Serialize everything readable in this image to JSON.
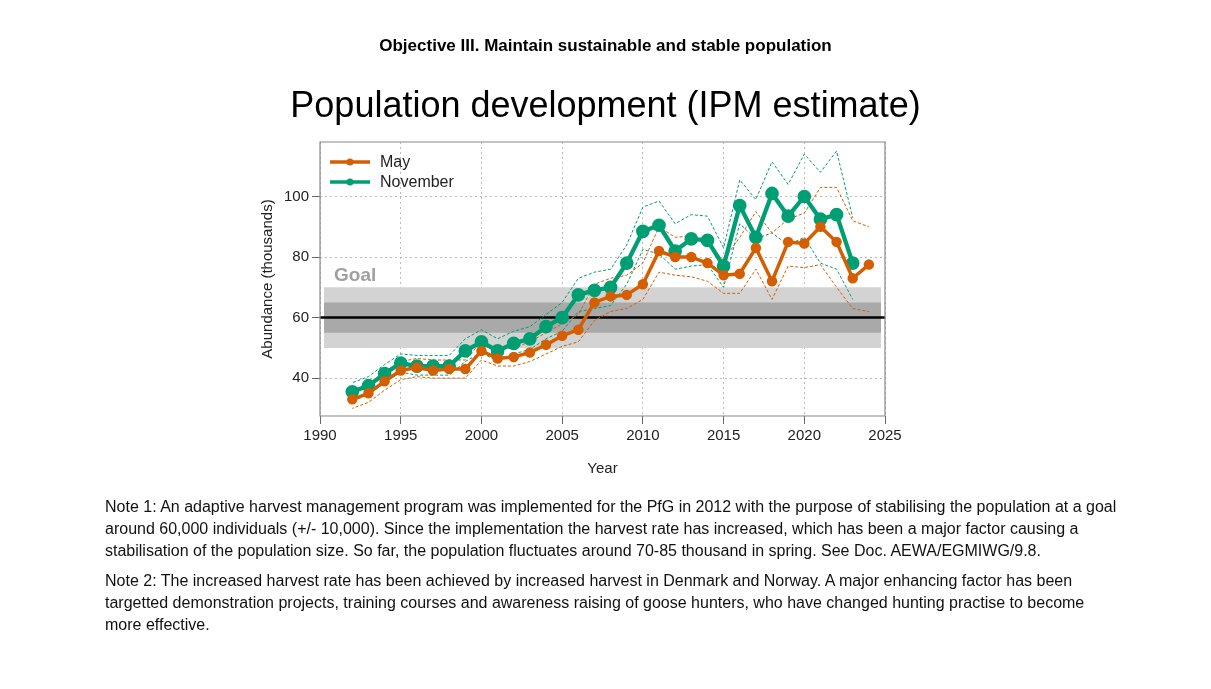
{
  "chart_data": {
    "type": "line",
    "subtitle": "Objective III. Maintain sustainable and stable population",
    "title": "Population development (IPM estimate)",
    "xlabel": "Year",
    "ylabel": "Abundance (thousands)",
    "x": [
      1992,
      1993,
      1994,
      1995,
      1996,
      1997,
      1998,
      1999,
      2000,
      2001,
      2002,
      2003,
      2004,
      2005,
      2006,
      2007,
      2008,
      2009,
      2010,
      2011,
      2012,
      2013,
      2014,
      2015,
      2016,
      2017,
      2018,
      2019,
      2020,
      2021,
      2022,
      2023,
      2024
    ],
    "series": [
      {
        "name": "May",
        "color": "#d55e00",
        "values": [
          33,
          35,
          39,
          42.5,
          43.5,
          42.5,
          43,
          43,
          49,
          46.5,
          47,
          48.5,
          51,
          54,
          56,
          65,
          67,
          67.5,
          71,
          82,
          80,
          80,
          78,
          74,
          74.5,
          83,
          72,
          85,
          84.5,
          90,
          85,
          73,
          77.5
        ]
      },
      {
        "name": "November",
        "color": "#009e73",
        "values": [
          35.5,
          37.5,
          41.5,
          45,
          44,
          44,
          44,
          49,
          52,
          49,
          51.5,
          53,
          57,
          60,
          67.5,
          69,
          70,
          78,
          88.5,
          90.5,
          82,
          86,
          85.5,
          77,
          97,
          86.5,
          101,
          93.5,
          100,
          92.5,
          94,
          78,
          null
        ]
      },
      {
        "color": "#d55e00",
        "line_style": "dashed",
        "marker": "none",
        "values": [
          30,
          32,
          36,
          39.5,
          40.5,
          40,
          40,
          40,
          46,
          44,
          44,
          45.5,
          48,
          50.5,
          52,
          59,
          62,
          63,
          66,
          75,
          74,
          73.5,
          72,
          68,
          68,
          76,
          66,
          77,
          76.5,
          77.5,
          70,
          63,
          62
        ]
      },
      {
        "color": "#d55e00",
        "line_style": "dashed",
        "marker": "none",
        "values": [
          36,
          38,
          42,
          45.5,
          46.5,
          46,
          46,
          46,
          52,
          49.5,
          50,
          52,
          55,
          58,
          61,
          71,
          73,
          74,
          78,
          90,
          86.5,
          87,
          84,
          79,
          86.5,
          95,
          88,
          92.5,
          94.5,
          103,
          103,
          92,
          90
        ]
      },
      {
        "color": "#009e73",
        "line_style": "dashed",
        "marker": "none",
        "values": [
          32.5,
          34.5,
          38.5,
          42,
          41,
          41,
          41,
          45.5,
          48.5,
          45.5,
          48,
          49.5,
          53,
          55.5,
          62,
          63,
          64,
          71,
          82.5,
          81,
          76,
          77,
          77.5,
          70,
          91,
          86,
          88,
          84,
          86.5,
          78,
          76,
          66,
          null
        ]
      },
      {
        "color": "#009e73",
        "line_style": "dashed",
        "marker": "none",
        "values": [
          38.5,
          40.5,
          44.5,
          48,
          47.5,
          47.5,
          47.5,
          53,
          56,
          53,
          55.5,
          57,
          61,
          65,
          73,
          75,
          76,
          84,
          96.5,
          98.5,
          91,
          94,
          93.5,
          83,
          105.5,
          99,
          111.5,
          104,
          114,
          108,
          115,
          93,
          null
        ]
      }
    ],
    "xlim": [
      1990,
      2025
    ],
    "xticks": [
      1990,
      1995,
      2000,
      2005,
      2010,
      2015,
      2020,
      2025
    ],
    "ylim": [
      27.5,
      118
    ],
    "yticks": [
      40,
      60,
      80,
      100
    ],
    "bands": [
      {
        "axis": "y",
        "from": 50,
        "to": 70,
        "label": "Goal",
        "color": "#d3d3d3"
      },
      {
        "axis": "y",
        "from": 55,
        "to": 65,
        "color": "#a9a9a9"
      }
    ],
    "ref_lines": [
      {
        "axis": "y",
        "value": 60,
        "color": "#000000"
      }
    ],
    "grid": true,
    "legend": "top left",
    "marker": "circle",
    "line_style": "solid",
    "annotations": [
      "Note 1: An adaptive harvest management program was implemented for the PfG in 2012 with the purpose of stabilising the population at a goal around 60,000 individuals (+/- 10,000). Since the implementation the harvest rate has increased, which has been a major factor causing a stabilisation of the population size. So far, the population fluctuates around 70-85 thousand in spring. See Doc. AEWA/EGMIWG/9.8.",
      "Note 2: The increased harvest rate has been achieved by increased harvest in Denmark and Norway. A major enhancing factor has been targetted demonstration projects, training courses and awareness raising of goose hunters, who have changed hunting practise to become more effective."
    ]
  }
}
